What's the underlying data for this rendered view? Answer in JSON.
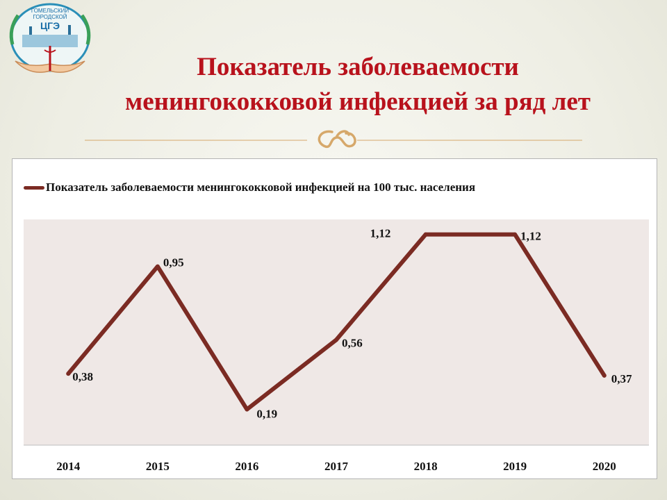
{
  "header": {
    "title_line1": "Показатель заболеваемости",
    "title_line2": "менингококковой инфекцией за ряд лет"
  },
  "logo": {
    "text_line1": "ГОМЕЛЬСКИЙ",
    "text_line2": "ГОРОДСКОЙ",
    "text_line3": "ЦГЭ"
  },
  "colors": {
    "title": "#b8121c",
    "line": "#7b2b23",
    "plot_area": "#efe8e6",
    "accent_gold": "#d6a86a"
  },
  "chart_data": {
    "type": "line",
    "categories": [
      "2014",
      "2015",
      "2016",
      "2017",
      "2018",
      "2019",
      "2020"
    ],
    "series": [
      {
        "name": "Показатель заболеваемости менингококковой инфекцией на 100 тыс. населения",
        "values": [
          0.38,
          0.95,
          0.19,
          0.56,
          1.12,
          1.12,
          0.37
        ],
        "labels": [
          "0,38",
          "0,95",
          "",
          "0,56",
          "1,12",
          "1,12",
          "0,37"
        ]
      }
    ],
    "extra_labels": [
      "0,19"
    ],
    "title": "",
    "xlabel": "",
    "ylabel": "",
    "ylim": [
      0,
      1.2
    ],
    "grid": false,
    "legend_position": "top"
  }
}
